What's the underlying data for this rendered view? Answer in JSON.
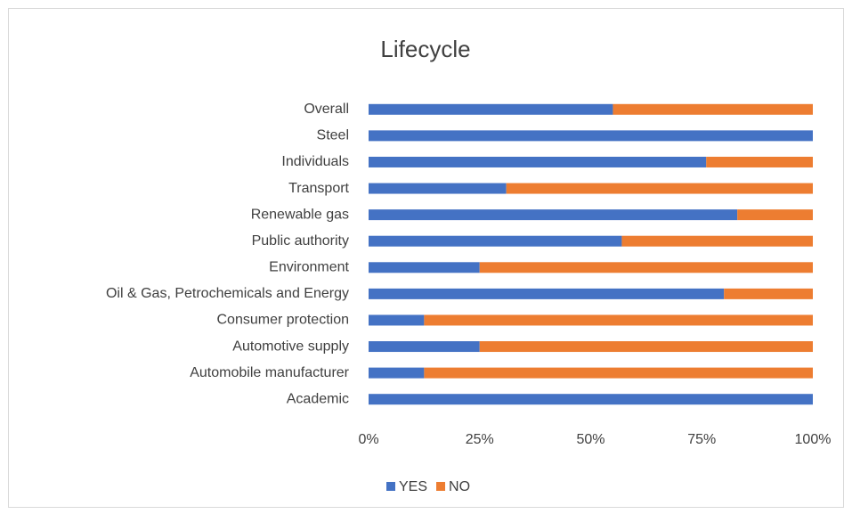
{
  "chart_data": {
    "type": "stacked-barh",
    "title": "Lifecycle",
    "categories": [
      "Overall",
      "Steel",
      "Individuals",
      "Transport",
      "Renewable gas",
      "Public authority",
      "Environment",
      "Oil & Gas, Petrochemicals and Energy",
      "Consumer protection",
      "Automotive supply",
      "Automobile manufacturer",
      "Academic"
    ],
    "series": [
      {
        "name": "YES",
        "color": "#4472c4",
        "values": [
          55,
          100,
          76,
          31,
          83,
          57,
          25,
          80,
          12.5,
          25,
          12.5,
          100
        ]
      },
      {
        "name": "NO",
        "color": "#ed7d31",
        "values": [
          45,
          0,
          24,
          69,
          17,
          43,
          75,
          20,
          87.5,
          75,
          87.5,
          0
        ]
      }
    ],
    "xlim": [
      0,
      100
    ],
    "xticks": [
      {
        "value": 0,
        "label": "0%"
      },
      {
        "value": 25,
        "label": "25%"
      },
      {
        "value": 50,
        "label": "50%"
      },
      {
        "value": 75,
        "label": "75%"
      },
      {
        "value": 100,
        "label": "100%"
      }
    ],
    "grid": false,
    "legend": "bottom"
  }
}
